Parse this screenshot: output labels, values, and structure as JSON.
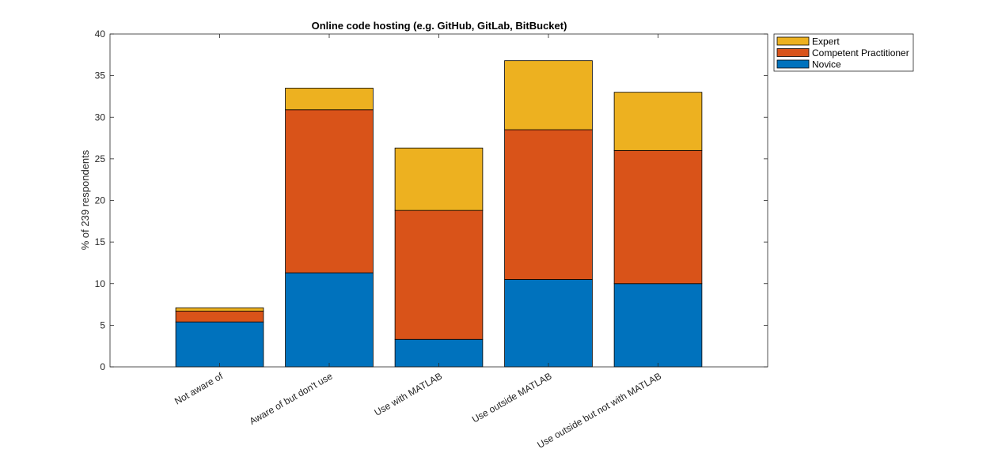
{
  "chart_data": {
    "type": "bar",
    "stacked": true,
    "title": "Online code hosting (e.g. GitHub, GitLab, BitBucket)",
    "xlabel": "",
    "ylabel": "% of 239 respondents",
    "ylim": [
      0,
      40
    ],
    "yticks": [
      0,
      5,
      10,
      15,
      20,
      25,
      30,
      35,
      40
    ],
    "categories": [
      "Not aware of",
      "Aware of but don't use",
      "Use with MATLAB",
      "Use outside MATLAB",
      "Use outside but not with MATLAB"
    ],
    "series": [
      {
        "name": "Novice",
        "color": "#0072BD",
        "values": [
          5.4,
          11.3,
          3.3,
          10.5,
          10.0
        ]
      },
      {
        "name": "Competent Practitioner",
        "color": "#D95319",
        "values": [
          1.3,
          19.6,
          15.5,
          18.0,
          16.0
        ]
      },
      {
        "name": "Expert",
        "color": "#EDB120",
        "values": [
          0.4,
          2.6,
          7.5,
          8.3,
          7.0
        ]
      }
    ],
    "legend_order": [
      "Expert",
      "Competent Practitioner",
      "Novice"
    ],
    "legend_position": "outside-top-right",
    "grid": false
  }
}
